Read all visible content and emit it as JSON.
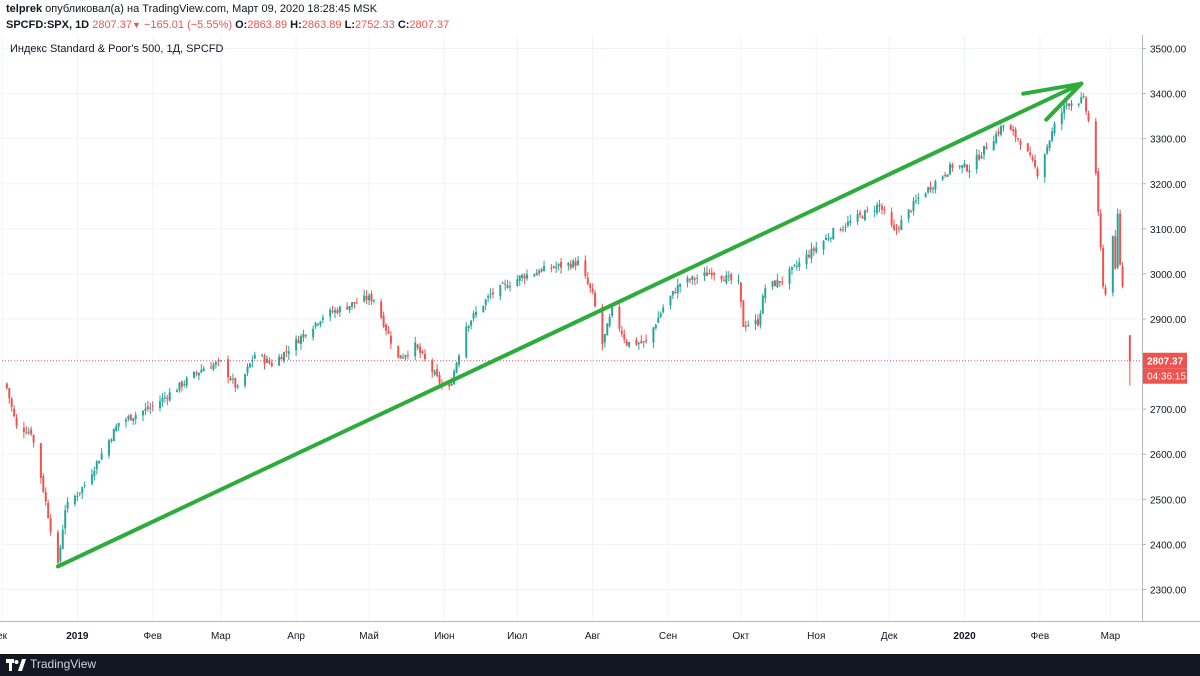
{
  "header": {
    "author": "telprek",
    "published_text": "опубликовал(а) на TradingView.com, Март 09, 2020 18:28:45 MSK",
    "symbol": "SPCFD:SPX, 1D",
    "last": "2807.37",
    "change": "−165.01 (−5.55%)",
    "o_label": "O:",
    "o_value": "2863.89",
    "h_label": "H:",
    "h_value": "2863.89",
    "l_label": "L:",
    "l_value": "2752.33",
    "c_label": "C:",
    "c_value": "2807.37"
  },
  "symbol_description": "Индекс Standard & Poor's 500, 1Д, SPCFD",
  "price_label": "2807.37",
  "countdown_label": "04:36:15",
  "footer": {
    "brand": "TradingView"
  },
  "colors": {
    "up": "#26a69a",
    "down": "#ef5350",
    "arrow": "#2dac3c",
    "grid": "#f0f3fa",
    "axis_text": "#131722",
    "price_bg": "#ef5350",
    "footer_bg": "#131722"
  },
  "chart_data": {
    "type": "candlestick",
    "title": "Индекс Standard & Poor's 500, 1Д, SPCFD",
    "ylim": [
      2230,
      3530
    ],
    "y_ticks": [
      "2300.00",
      "2400.00",
      "2500.00",
      "2600.00",
      "2700.00",
      "2800.00",
      "2900.00",
      "3000.00",
      "3100.00",
      "3200.00",
      "3300.00",
      "3400.00",
      "3500.00"
    ],
    "x_tick_labels": [
      "ек",
      "2019",
      "Фев",
      "Мар",
      "Апр",
      "Май",
      "Июн",
      "Июл",
      "Авг",
      "Сен",
      "Окт",
      "Ноя",
      "Дек",
      "2020",
      "Фев",
      "Мар"
    ],
    "x_ticks": [
      "2018-12-01",
      "2019-01-01",
      "2019-02-01",
      "2019-03-01",
      "2019-04-01",
      "2019-05-01",
      "2019-06-01",
      "2019-07-01",
      "2019-08-01",
      "2019-09-01",
      "2019-10-01",
      "2019-11-01",
      "2019-12-01",
      "2020-01-01",
      "2020-02-01",
      "2020-03-01"
    ],
    "x_range": [
      "2018-12-01",
      "2020-03-14"
    ],
    "last_price": 2807.37,
    "waypoints": [
      [
        "2018-12-01",
        2790
      ],
      [
        "2018-12-07",
        2660
      ],
      [
        "2018-12-13",
        2650
      ],
      [
        "2018-12-17",
        2550
      ],
      [
        "2018-12-24",
        2351
      ],
      [
        "2018-12-27",
        2480
      ],
      [
        "2018-12-31",
        2506
      ],
      [
        "2019-01-04",
        2532
      ],
      [
        "2019-01-18",
        2670
      ],
      [
        "2019-02-01",
        2706
      ],
      [
        "2019-02-22",
        2792
      ],
      [
        "2019-03-01",
        2803
      ],
      [
        "2019-03-08",
        2743
      ],
      [
        "2019-03-15",
        2822
      ],
      [
        "2019-03-22",
        2800
      ],
      [
        "2019-03-29",
        2834
      ],
      [
        "2019-04-12",
        2907
      ],
      [
        "2019-04-30",
        2946
      ],
      [
        "2019-05-03",
        2945
      ],
      [
        "2019-05-13",
        2812
      ],
      [
        "2019-05-20",
        2840
      ],
      [
        "2019-05-31",
        2752
      ],
      [
        "2019-06-03",
        2744
      ],
      [
        "2019-06-10",
        2886
      ],
      [
        "2019-06-20",
        2954
      ],
      [
        "2019-07-03",
        2995
      ],
      [
        "2019-07-15",
        3014
      ],
      [
        "2019-07-26",
        3025
      ],
      [
        "2019-08-01",
        2953
      ],
      [
        "2019-08-05",
        2844
      ],
      [
        "2019-08-09",
        2918
      ],
      [
        "2019-08-15",
        2847
      ],
      [
        "2019-08-23",
        2847
      ],
      [
        "2019-08-30",
        2926
      ],
      [
        "2019-09-06",
        2979
      ],
      [
        "2019-09-16",
        2997
      ],
      [
        "2019-09-19",
        3006
      ],
      [
        "2019-09-30",
        2977
      ],
      [
        "2019-10-02",
        2887
      ],
      [
        "2019-10-08",
        2893
      ],
      [
        "2019-10-11",
        2970
      ],
      [
        "2019-10-18",
        2986
      ],
      [
        "2019-10-28",
        3039
      ],
      [
        "2019-11-08",
        3093
      ],
      [
        "2019-11-27",
        3153
      ],
      [
        "2019-12-03",
        3093
      ],
      [
        "2019-12-13",
        3168
      ],
      [
        "2019-12-27",
        3240
      ],
      [
        "2020-01-03",
        3235
      ],
      [
        "2020-01-17",
        3330
      ],
      [
        "2020-01-24",
        3295
      ],
      [
        "2020-01-31",
        3225
      ],
      [
        "2020-02-07",
        3328
      ],
      [
        "2020-02-12",
        3379
      ],
      [
        "2020-02-19",
        3386
      ],
      [
        "2020-02-21",
        3338
      ],
      [
        "2020-02-24",
        3226
      ],
      [
        "2020-02-25",
        3128
      ],
      [
        "2020-02-27",
        2979
      ],
      [
        "2020-02-28",
        2954
      ],
      [
        "2020-03-02",
        3090
      ],
      [
        "2020-03-03",
        3003
      ],
      [
        "2020-03-04",
        3130
      ],
      [
        "2020-03-05",
        3023
      ],
      [
        "2020-03-06",
        2972
      ],
      [
        "2020-03-09",
        2807.37
      ]
    ],
    "annotations": [
      {
        "type": "trend-arrow",
        "from": [
          "2018-12-24",
          2351
        ],
        "to": [
          "2020-02-18",
          3422
        ]
      },
      {
        "type": "horizontal-line",
        "price": 2807.37,
        "style": "dotted"
      }
    ]
  }
}
